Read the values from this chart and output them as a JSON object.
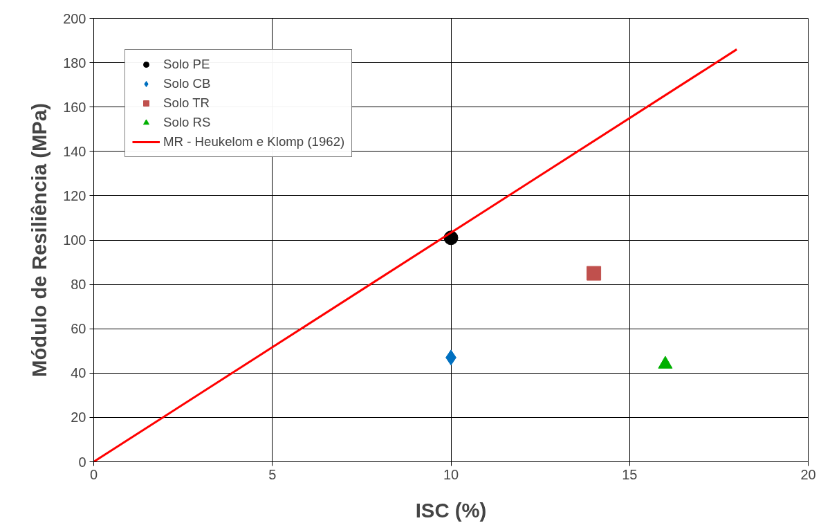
{
  "chart_data": {
    "type": "scatter",
    "xlabel": "ISC (%)",
    "ylabel": "Módulo de Resiliência (MPa)",
    "xlim": [
      0,
      20
    ],
    "xticks": [
      0,
      5,
      10,
      15,
      20
    ],
    "ylim": [
      0,
      200
    ],
    "yticks": [
      0,
      20,
      40,
      60,
      80,
      100,
      120,
      140,
      160,
      180,
      200
    ],
    "grid": true,
    "legend": "top left",
    "series": [
      {
        "name": "Solo PE",
        "color": "#000000",
        "marker": "circle",
        "x": [
          10
        ],
        "values": [
          101
        ]
      },
      {
        "name": "Solo CB",
        "color": "#0070c0",
        "marker": "diamond",
        "x": [
          10
        ],
        "values": [
          47
        ]
      },
      {
        "name": "Solo TR",
        "color": "#c0504d",
        "marker": "square",
        "x": [
          14
        ],
        "values": [
          85
        ]
      },
      {
        "name": "Solo RS",
        "color": "#00b000",
        "marker": "triangle",
        "x": [
          16
        ],
        "values": [
          44
        ]
      },
      {
        "name": "MR - Heukelom e Klomp (1962)",
        "type": "line",
        "color": "#ff0000",
        "marker": "none",
        "line_style": "solid",
        "x": [
          0,
          18
        ],
        "values": [
          0,
          186
        ]
      }
    ]
  }
}
